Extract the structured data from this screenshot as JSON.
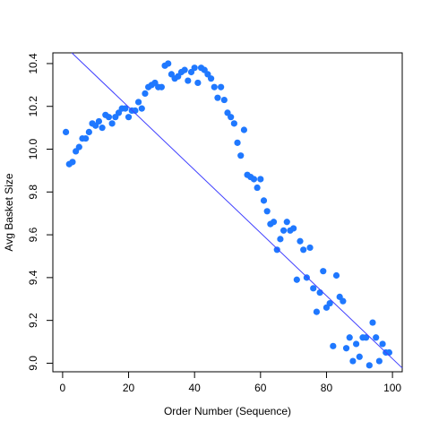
{
  "chart_data": {
    "type": "scatter",
    "title": "",
    "xlabel": "Order Number (Sequence)",
    "ylabel": "Avg Basket Size",
    "xlim": [
      -2.96,
      102.96
    ],
    "ylim": [
      8.96,
      10.45
    ],
    "xticks": [
      0,
      20,
      40,
      60,
      80,
      100
    ],
    "yticks": [
      9.0,
      9.2,
      9.4,
      9.6,
      9.8,
      10.0,
      10.2,
      10.4
    ],
    "xtick_labels": [
      "0",
      "20",
      "40",
      "60",
      "80",
      "100"
    ],
    "ytick_labels": [
      "9.0",
      "9.2",
      "9.4",
      "9.6",
      "9.8",
      "10.0",
      "10.2",
      "10.4"
    ],
    "point_color": "#1f78ff",
    "line_color": "#4040ff",
    "series": [
      {
        "x": [
          1,
          2,
          3,
          4,
          5,
          6,
          7,
          8,
          9,
          10,
          11,
          12,
          13,
          14,
          15,
          16,
          17,
          18,
          19,
          20,
          21,
          22,
          23,
          24,
          25,
          26,
          27,
          28,
          29,
          30,
          31,
          32,
          33,
          34,
          35,
          36,
          37,
          38,
          39,
          40,
          41,
          42,
          43,
          44,
          45,
          46,
          47,
          48,
          49,
          50,
          51,
          52,
          53,
          54,
          55,
          56,
          57,
          58,
          59,
          60,
          61,
          62,
          63,
          64,
          65,
          66,
          67,
          68,
          69,
          70,
          71,
          72,
          73,
          74,
          75,
          76,
          77,
          78,
          79,
          80,
          81,
          82,
          83,
          84,
          85,
          86,
          87,
          88,
          89,
          90,
          91,
          92,
          93,
          94,
          95,
          96,
          97,
          98,
          99
        ],
        "y": [
          10.08,
          9.93,
          9.94,
          9.99,
          10.01,
          10.05,
          10.05,
          10.08,
          10.12,
          10.11,
          10.13,
          10.1,
          10.16,
          10.15,
          10.12,
          10.15,
          10.17,
          10.19,
          10.19,
          10.15,
          10.18,
          10.18,
          10.22,
          10.19,
          10.26,
          10.29,
          10.3,
          10.31,
          10.29,
          10.29,
          10.39,
          10.4,
          10.35,
          10.33,
          10.34,
          10.36,
          10.37,
          10.32,
          10.36,
          10.38,
          10.31,
          10.38,
          10.37,
          10.35,
          10.33,
          10.29,
          10.24,
          10.29,
          10.23,
          10.17,
          10.15,
          10.12,
          10.03,
          9.97,
          10.09,
          9.88,
          9.87,
          9.86,
          9.82,
          9.86,
          9.76,
          9.71,
          9.65,
          9.66,
          9.53,
          9.58,
          9.62,
          9.66,
          9.62,
          9.63,
          9.39,
          9.57,
          9.53,
          9.4,
          9.54,
          9.35,
          9.24,
          9.33,
          9.43,
          9.26,
          9.28,
          9.08,
          9.41,
          9.31,
          9.29,
          9.07,
          9.12,
          9.01,
          9.09,
          9.03,
          9.12,
          9.12,
          8.99,
          9.19,
          9.12,
          9.01,
          9.09,
          9.05,
          9.05
        ]
      }
    ],
    "fit_line": {
      "intercept": 10.491,
      "slope": -0.0147
    },
    "grid": false,
    "legend": "none"
  }
}
